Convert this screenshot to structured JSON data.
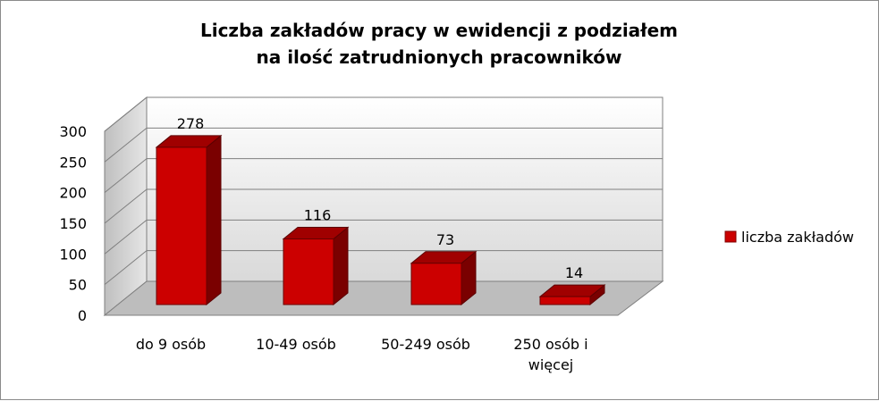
{
  "chart_data": {
    "type": "bar",
    "title_lines": [
      "Liczba zakładów pracy w ewidencji z podziałem",
      "na ilość zatrudnionych pracowników"
    ],
    "categories": [
      [
        "do 9 osób"
      ],
      [
        "10-49 osób"
      ],
      [
        "50-249 osób"
      ],
      [
        "250 osób i",
        "więcej"
      ]
    ],
    "series": [
      {
        "name": "liczba zakładów",
        "values": [
          278,
          116,
          73,
          14
        ],
        "color": "#cc0000"
      }
    ],
    "y_ticks": [
      "0",
      "50",
      "100",
      "150",
      "200",
      "250",
      "300"
    ],
    "ylim": [
      0,
      300
    ],
    "grid": true,
    "legend": "right",
    "style": "3d-column"
  }
}
